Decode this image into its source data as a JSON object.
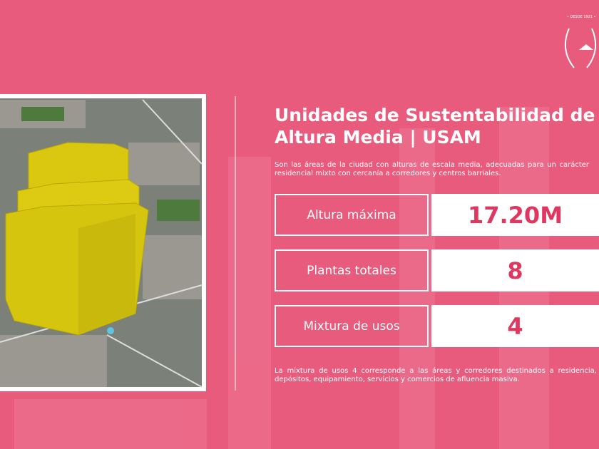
{
  "logo": {
    "text": "• DESDE 1921 •"
  },
  "header": {
    "title": "Unidades de Sustentabilidad de Altura Media | USAM",
    "description": "Son las áreas de la ciudad con alturas de escala media, adecuadas para un carácter residencial mixto con cercanía a corredores y centros barriales."
  },
  "table": {
    "rows": [
      [
        "Altura máxima",
        "17.20M"
      ],
      [
        "Plantas totales",
        "8"
      ],
      [
        "Mixtura de usos",
        "4"
      ]
    ]
  },
  "footer": {
    "text": "La mixtura de usos 4 corresponde a las áreas y corredores destinados a residencia, depósitos, equipamiento, servicios y comercios de afluencia masiva."
  }
}
